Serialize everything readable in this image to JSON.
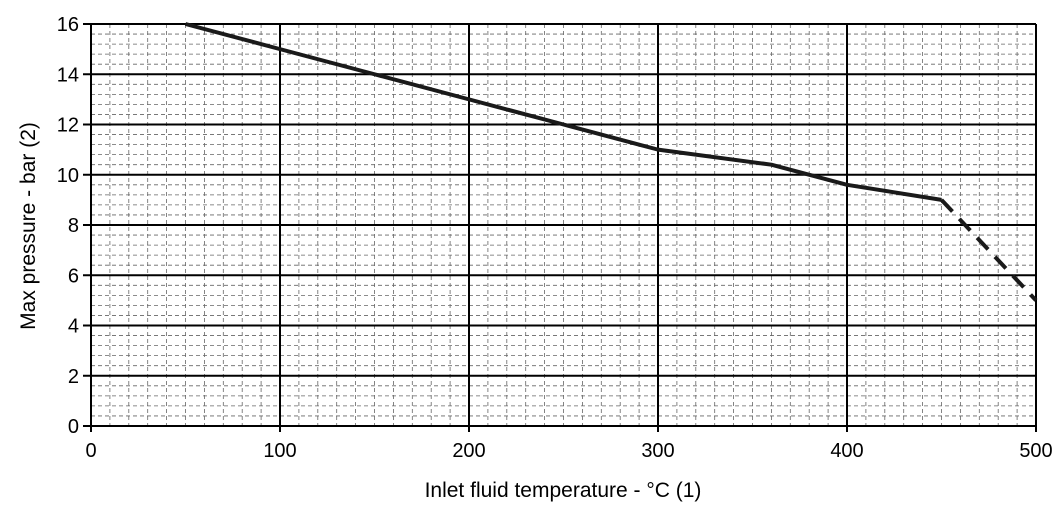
{
  "chart_data": {
    "type": "line",
    "title": "",
    "xlabel": "Inlet fluid temperature - °C (1)",
    "ylabel": "Max pressure - bar (2)",
    "xlim": [
      0,
      500
    ],
    "ylim": [
      0,
      16
    ],
    "x_ticks": [
      0,
      100,
      200,
      300,
      400,
      500
    ],
    "y_ticks": [
      0,
      2,
      4,
      6,
      8,
      10,
      12,
      14,
      16
    ],
    "minor_grid_x_step": 10,
    "minor_grid_y_step": 0.4,
    "grid": true,
    "legend": "none",
    "series": [
      {
        "style": "solid",
        "color": "#1a1a1a",
        "x": [
          50,
          100,
          150,
          200,
          250,
          300,
          360,
          400,
          450
        ],
        "y": [
          16,
          15,
          14,
          13,
          12,
          11,
          10.4,
          9.6,
          9
        ]
      },
      {
        "style": "dashed",
        "color": "#1a1a1a",
        "x": [
          450,
          500
        ],
        "y": [
          9,
          5
        ]
      }
    ]
  }
}
